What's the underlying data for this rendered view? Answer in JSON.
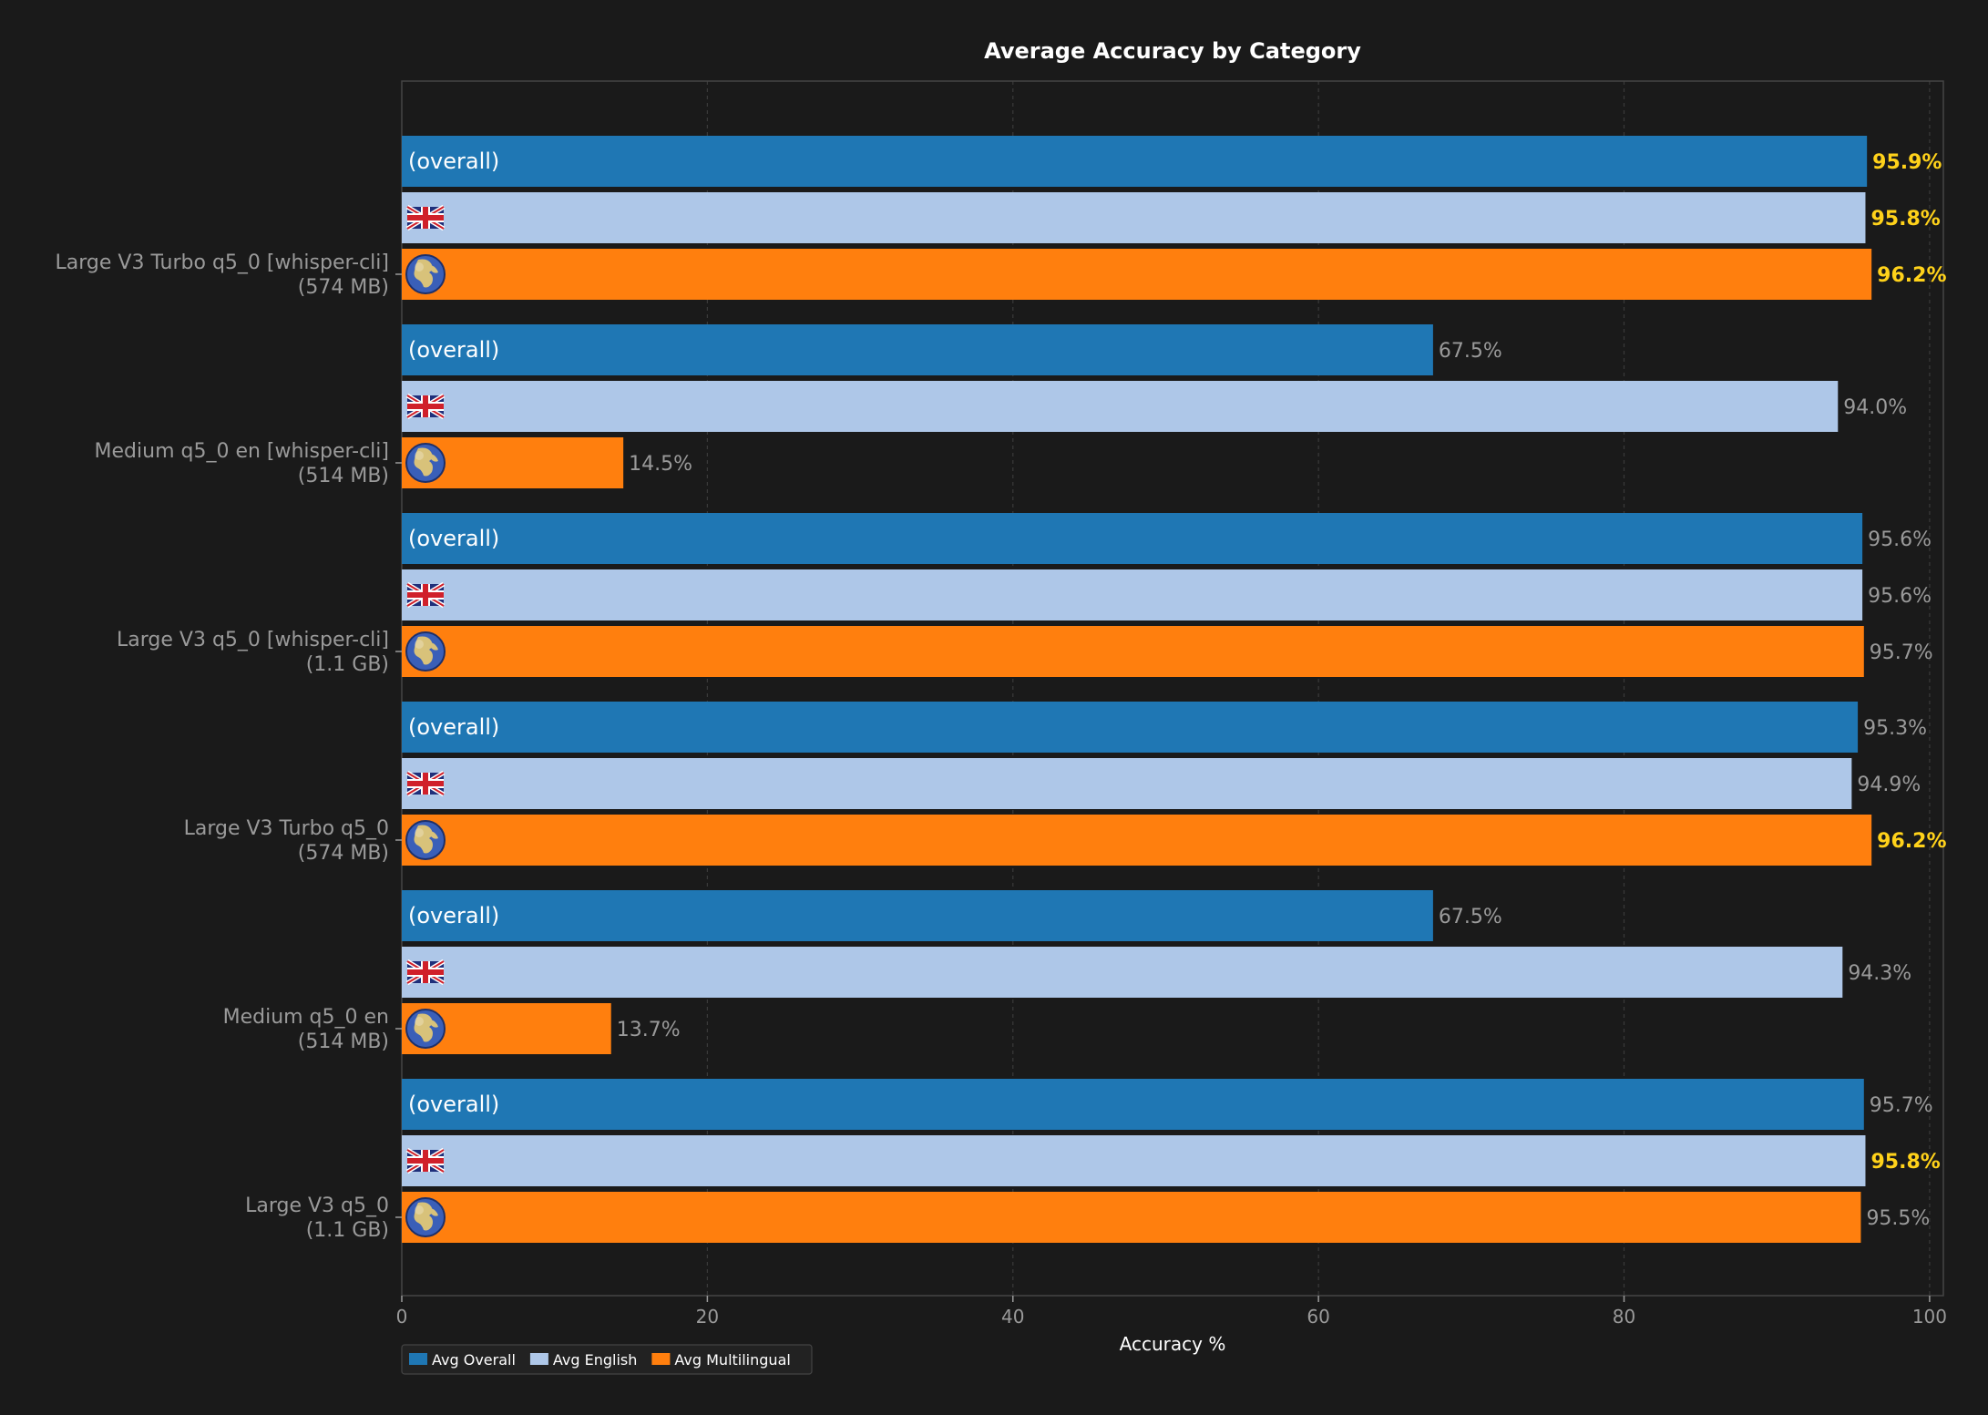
{
  "chart_data": {
    "type": "bar",
    "orientation": "horizontal",
    "title": "Average Accuracy by Category",
    "xlabel": "Accuracy %",
    "ylabel": "",
    "xlim": [
      0,
      100.9
    ],
    "xticks": [
      0,
      20,
      40,
      60,
      80,
      100
    ],
    "grid": "vertical-dashed",
    "legend_placement": "bottom-left",
    "bar_text": {
      "overall": "(overall)",
      "english_icon": "uk-flag-icon",
      "multilingual_icon": "globe-icon"
    },
    "colors": {
      "background": "#1a1a1a",
      "overall": "#1f77b4",
      "english": "#aec7e8",
      "multilingual": "#ff7f0e",
      "best_label": "#ffd21a",
      "label": "#9a9a9a",
      "title": "#ffffff"
    },
    "categories": [
      {
        "line1": "Large V3 Turbo q5_0 [whisper-cli]",
        "line2": "(574 MB)"
      },
      {
        "line1": "Medium q5_0 en [whisper-cli]",
        "line2": "(514 MB)"
      },
      {
        "line1": "Large V3 q5_0 [whisper-cli]",
        "line2": "(1.1 GB)"
      },
      {
        "line1": "Large V3 Turbo q5_0",
        "line2": "(574 MB)"
      },
      {
        "line1": "Medium q5_0 en",
        "line2": "(514 MB)"
      },
      {
        "line1": "Large V3 q5_0",
        "line2": "(1.1 GB)"
      }
    ],
    "series": [
      {
        "name": "Avg Overall",
        "key": "overall",
        "values": [
          95.9,
          67.5,
          95.6,
          95.3,
          67.5,
          95.7
        ],
        "labels": [
          "95.9%",
          "67.5%",
          "95.6%",
          "95.3%",
          "67.5%",
          "95.7%"
        ],
        "best": [
          true,
          false,
          false,
          false,
          false,
          false
        ]
      },
      {
        "name": "Avg English",
        "key": "english",
        "values": [
          95.8,
          94.0,
          95.6,
          94.9,
          94.3,
          95.8
        ],
        "labels": [
          "95.8%",
          "94.0%",
          "95.6%",
          "94.9%",
          "94.3%",
          "95.8%"
        ],
        "best": [
          true,
          false,
          false,
          false,
          false,
          true
        ]
      },
      {
        "name": "Avg Multilingual",
        "key": "multilingual",
        "values": [
          96.2,
          14.5,
          95.7,
          96.2,
          13.7,
          95.5
        ],
        "labels": [
          "96.2%",
          "14.5%",
          "95.7%",
          "96.2%",
          "13.7%",
          "95.5%"
        ],
        "best": [
          true,
          false,
          false,
          true,
          false,
          false
        ]
      }
    ]
  }
}
